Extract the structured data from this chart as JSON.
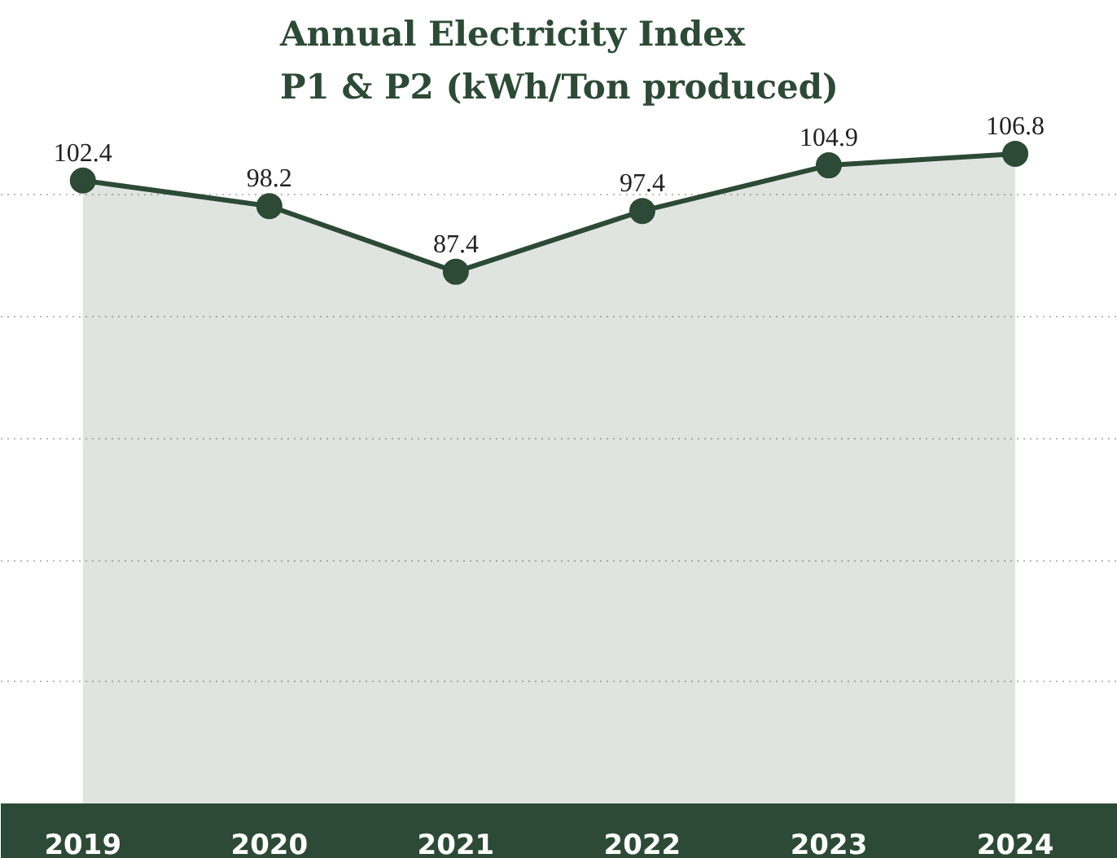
{
  "chart_data": {
    "type": "area",
    "title": "Annual Electricity Index\nP1 & P2 (kWh/Ton produced)",
    "categories": [
      "2019",
      "2020",
      "2021",
      "2022",
      "2023",
      "2024"
    ],
    "series": [
      {
        "color": "#2c4a35",
        "values": [
          102.4,
          98.2,
          87.4,
          97.4,
          104.9,
          106.8
        ]
      }
    ],
    "tick_labels": "x",
    "grid": "y",
    "marker": "circle",
    "line_style": "solid",
    "data_labels": true
  }
}
